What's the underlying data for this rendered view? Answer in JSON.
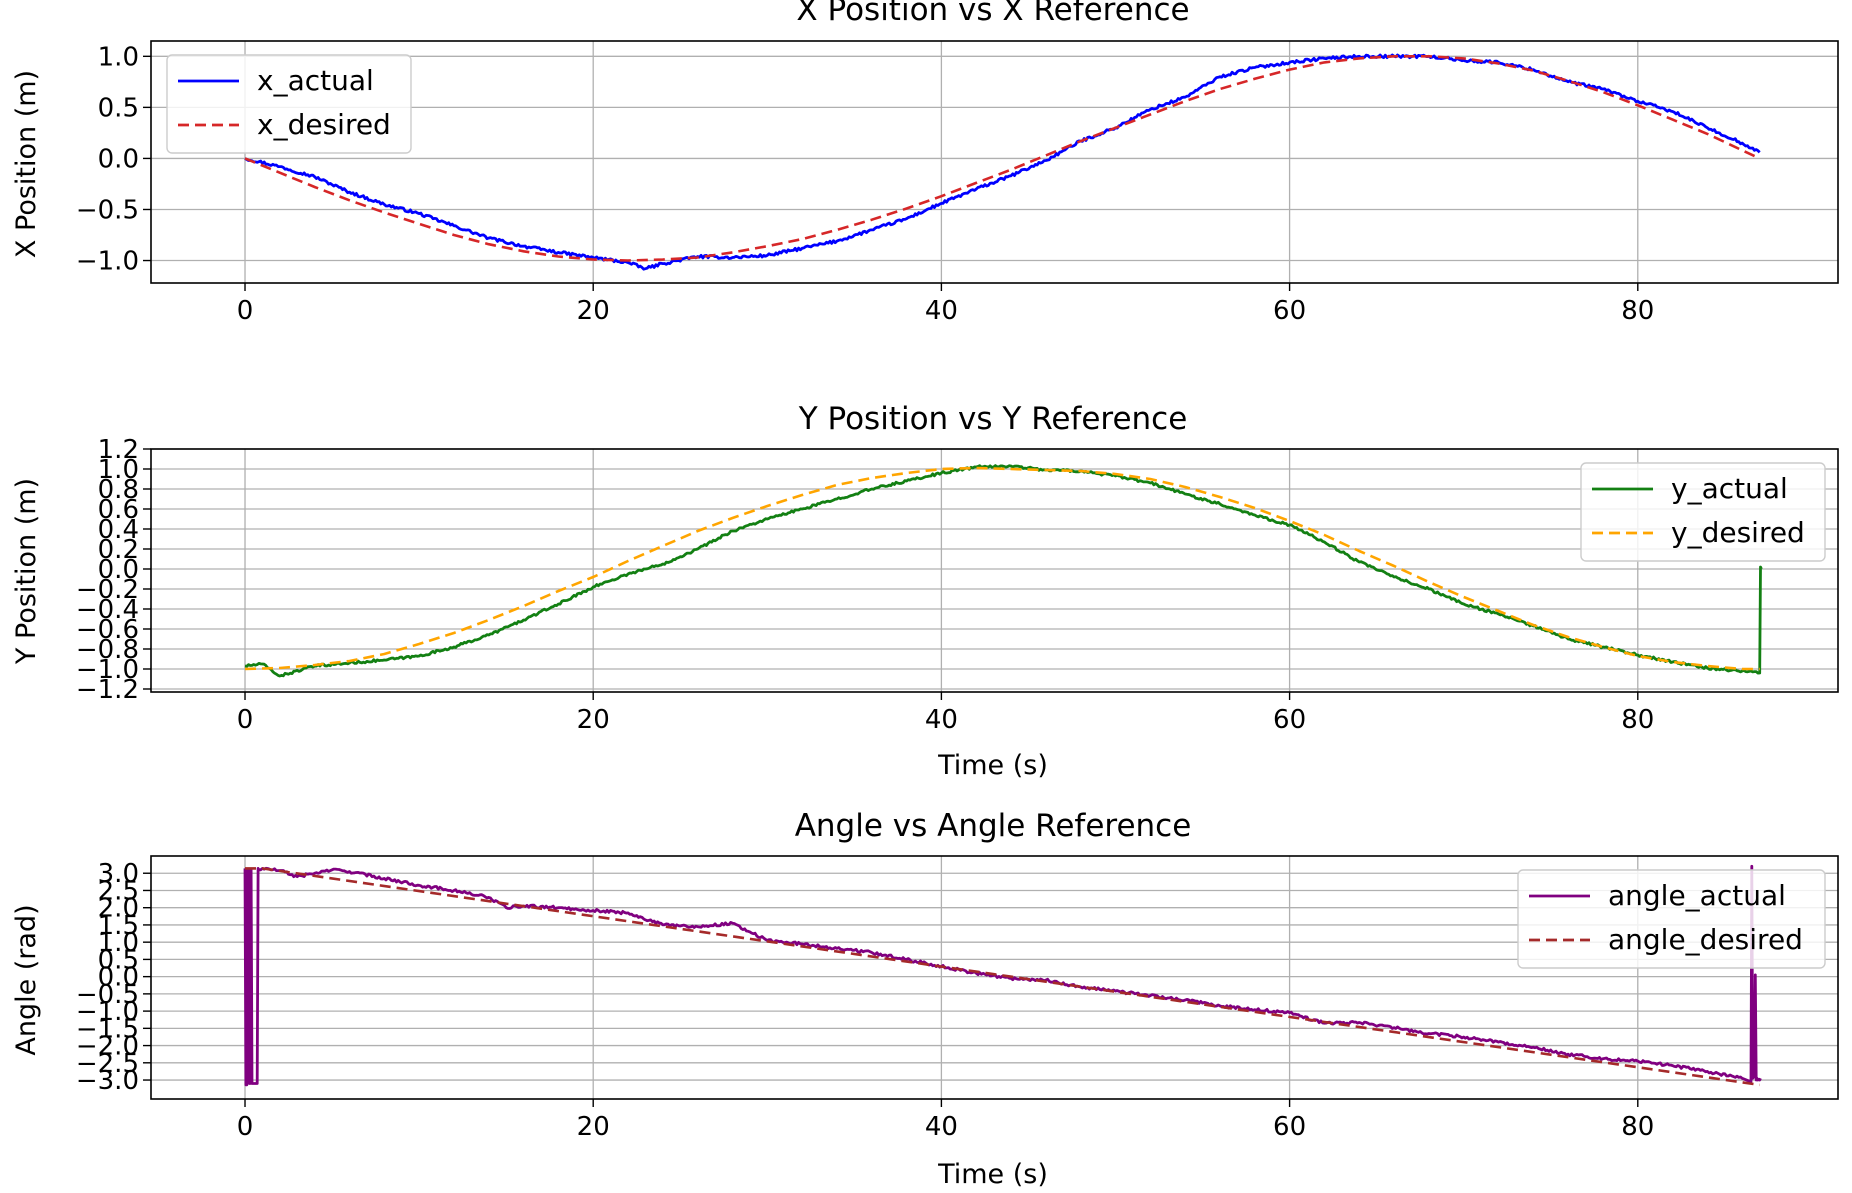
{
  "chart_data": [
    {
      "type": "line",
      "title": "X Position vs X Reference",
      "xlabel": "",
      "ylabel": "X Position (m)",
      "xlim": [
        -5.4,
        91.5
      ],
      "ylim": [
        -1.22,
        1.15
      ],
      "xticks": [
        0,
        20,
        40,
        60,
        80
      ],
      "xtick_labels": [
        "0",
        "20",
        "40",
        "60",
        "80"
      ],
      "yticks": [
        -1.0,
        -0.5,
        0.0,
        0.5,
        1.0
      ],
      "ytick_labels": [
        "−1.0",
        "−0.5",
        "0.0",
        "0.5",
        "1.0"
      ],
      "grid": true,
      "legend_position": "upper-left",
      "series": [
        {
          "name": "x_actual",
          "color": "#0000ff",
          "dash": "solid",
          "noise": 0.014,
          "x": [
            0,
            2,
            4,
            6,
            8,
            10,
            12,
            14,
            16,
            18,
            20,
            22,
            23,
            24,
            26,
            28,
            30,
            32,
            34,
            36,
            38,
            40,
            42,
            44,
            46,
            48,
            50,
            52,
            54,
            56,
            58,
            60,
            62,
            64,
            66,
            68,
            70,
            72,
            74,
            76,
            78,
            80,
            82,
            84,
            86,
            87
          ],
          "y": [
            0.0,
            -0.08,
            -0.18,
            -0.33,
            -0.45,
            -0.54,
            -0.66,
            -0.78,
            -0.86,
            -0.92,
            -0.97,
            -1.02,
            -1.08,
            -1.03,
            -0.96,
            -0.97,
            -0.95,
            -0.88,
            -0.81,
            -0.7,
            -0.59,
            -0.44,
            -0.3,
            -0.17,
            -0.02,
            0.17,
            0.3,
            0.48,
            0.6,
            0.8,
            0.89,
            0.94,
            0.98,
            1.0,
            1.0,
            1.0,
            0.96,
            0.94,
            0.87,
            0.75,
            0.68,
            0.56,
            0.46,
            0.3,
            0.15,
            0.06
          ]
        },
        {
          "name": "x_desired",
          "color": "#d62728",
          "dash": "dashed",
          "noise": 0,
          "x": [
            0,
            2,
            4,
            6,
            8,
            10,
            12,
            14,
            16,
            18,
            20,
            22,
            24,
            26,
            28,
            30,
            32,
            34,
            36,
            38,
            40,
            42,
            44,
            46,
            48,
            50,
            52,
            54,
            56,
            58,
            60,
            62,
            64,
            66,
            68,
            70,
            72,
            74,
            76,
            78,
            80,
            82,
            84,
            86,
            87
          ],
          "y": [
            0.0,
            -0.14,
            -0.28,
            -0.41,
            -0.53,
            -0.64,
            -0.75,
            -0.84,
            -0.91,
            -0.96,
            -0.99,
            -1.0,
            -0.99,
            -0.97,
            -0.92,
            -0.86,
            -0.79,
            -0.7,
            -0.6,
            -0.49,
            -0.37,
            -0.24,
            -0.11,
            0.03,
            0.17,
            0.3,
            0.43,
            0.56,
            0.68,
            0.78,
            0.87,
            0.94,
            0.98,
            1.0,
            1.0,
            0.98,
            0.93,
            0.86,
            0.76,
            0.65,
            0.52,
            0.38,
            0.24,
            0.08,
            0.0
          ]
        }
      ]
    },
    {
      "type": "line",
      "title": "Y Position vs Y Reference",
      "xlabel": "Time (s)",
      "ylabel": "Y Position (m)",
      "xlim": [
        -5.4,
        91.5
      ],
      "ylim": [
        -1.23,
        1.2
      ],
      "xticks": [
        0,
        20,
        40,
        60,
        80
      ],
      "xtick_labels": [
        "0",
        "20",
        "40",
        "60",
        "80"
      ],
      "yticks": [
        -1.2,
        -1.0,
        -0.8,
        -0.6,
        -0.4,
        -0.2,
        0.0,
        0.2,
        0.4,
        0.6,
        0.8,
        1.0,
        1.2
      ],
      "ytick_labels": [
        "−1.2",
        "−1.0",
        "−0.8",
        "−0.6",
        "−0.4",
        "−0.2",
        "0.0",
        "0.2",
        "0.4",
        "0.6",
        "0.8",
        "1.0",
        "1.2"
      ],
      "grid": true,
      "legend_position": "upper-right",
      "series": [
        {
          "name": "y_actual",
          "color": "#138013",
          "dash": "solid",
          "noise": 0.012,
          "x": [
            0,
            1,
            2,
            4,
            6,
            8,
            10,
            12,
            14,
            16,
            18,
            20,
            22,
            24,
            26,
            28,
            30,
            32,
            34,
            36,
            38,
            40,
            42,
            44,
            46,
            48,
            50,
            52,
            54,
            56,
            58,
            60,
            62,
            64,
            66,
            68,
            70,
            72,
            74,
            76,
            78,
            80,
            82,
            84,
            86,
            87,
            87.05,
            87.1
          ],
          "y": [
            -0.97,
            -0.95,
            -1.07,
            -0.97,
            -0.94,
            -0.91,
            -0.87,
            -0.78,
            -0.66,
            -0.51,
            -0.35,
            -0.18,
            -0.05,
            0.05,
            0.2,
            0.38,
            0.5,
            0.6,
            0.7,
            0.8,
            0.88,
            0.96,
            1.02,
            1.03,
            0.99,
            0.98,
            0.93,
            0.86,
            0.75,
            0.65,
            0.54,
            0.44,
            0.27,
            0.07,
            -0.08,
            -0.2,
            -0.35,
            -0.45,
            -0.57,
            -0.7,
            -0.78,
            -0.86,
            -0.93,
            -0.99,
            -1.02,
            -1.04,
            0.02,
            0.0
          ]
        },
        {
          "name": "y_desired",
          "color": "#ffa500",
          "dash": "dashed",
          "noise": 0,
          "x": [
            0,
            2,
            4,
            6,
            8,
            10,
            12,
            14,
            16,
            18,
            20,
            22,
            24,
            26,
            28,
            30,
            32,
            34,
            36,
            38,
            40,
            42,
            44,
            46,
            48,
            50,
            52,
            54,
            56,
            58,
            60,
            62,
            64,
            66,
            68,
            70,
            72,
            74,
            76,
            78,
            80,
            82,
            84,
            86,
            87
          ],
          "y": [
            -1.0,
            -0.99,
            -0.96,
            -0.92,
            -0.85,
            -0.75,
            -0.64,
            -0.51,
            -0.37,
            -0.22,
            -0.08,
            0.08,
            0.23,
            0.38,
            0.51,
            0.63,
            0.74,
            0.84,
            0.91,
            0.96,
            1.0,
            1.01,
            1.0,
            0.99,
            0.98,
            0.95,
            0.9,
            0.82,
            0.72,
            0.61,
            0.48,
            0.34,
            0.18,
            0.03,
            -0.13,
            -0.28,
            -0.42,
            -0.56,
            -0.68,
            -0.78,
            -0.87,
            -0.93,
            -0.97,
            -1.0,
            -1.0
          ]
        }
      ]
    },
    {
      "type": "line",
      "title": "Angle vs Angle Reference",
      "xlabel": "Time (s)",
      "ylabel": "Angle (rad)",
      "xlim": [
        -5.4,
        91.5
      ],
      "ylim": [
        -3.55,
        3.5
      ],
      "xticks": [
        0,
        20,
        40,
        60,
        80
      ],
      "xtick_labels": [
        "0",
        "20",
        "40",
        "60",
        "80"
      ],
      "yticks": [
        -3.0,
        -2.5,
        -2.0,
        -1.5,
        -1.0,
        -0.5,
        0.0,
        0.5,
        1.0,
        1.5,
        2.0,
        2.5,
        3.0
      ],
      "ytick_labels": [
        "−3.0",
        "−2.5",
        "−2.0",
        "−1.5",
        "−1.0",
        "−0.5",
        "0.0",
        "0.5",
        "1.0",
        "1.5",
        "2.0",
        "2.5",
        "3.0"
      ],
      "grid": true,
      "legend_position": "upper-right",
      "series": [
        {
          "name": "angle_actual",
          "color": "#800080",
          "dash": "solid",
          "noise": 0.04,
          "x": [
            0,
            0.05,
            0.1,
            0.15,
            0.2,
            0.25,
            0.3,
            0.35,
            0.4,
            0.7,
            0.75,
            0.8,
            0.9,
            1,
            2,
            3,
            4,
            5,
            6,
            8,
            10,
            12,
            14,
            15,
            16,
            18,
            20,
            22,
            24,
            26,
            28,
            30,
            32,
            34,
            36,
            38,
            40,
            42,
            44,
            46,
            48,
            50,
            52,
            54,
            56,
            58,
            60,
            62,
            64,
            66,
            68,
            70,
            72,
            74,
            76,
            78,
            80,
            82,
            84,
            86,
            86.5,
            86.55,
            86.6,
            86.7,
            86.75,
            86.8,
            86.85,
            86.9,
            86.95,
            87,
            87.05
          ],
          "y": [
            3.14,
            -3.14,
            -3.14,
            3.1,
            3.1,
            -3.1,
            -3.1,
            3.1,
            -3.1,
            -3.1,
            3.14,
            3.1,
            3.1,
            3.14,
            3.08,
            2.9,
            3.0,
            3.1,
            3.05,
            2.85,
            2.65,
            2.5,
            2.3,
            2.0,
            2.05,
            2.0,
            1.92,
            1.85,
            1.5,
            1.45,
            1.55,
            1.05,
            0.95,
            0.82,
            0.7,
            0.5,
            0.3,
            0.1,
            -0.05,
            -0.1,
            -0.3,
            -0.42,
            -0.55,
            -0.68,
            -0.85,
            -0.96,
            -1.05,
            -1.35,
            -1.33,
            -1.48,
            -1.65,
            -1.75,
            -1.9,
            -2.05,
            -2.25,
            -2.38,
            -2.45,
            -2.58,
            -2.75,
            -2.95,
            -3.05,
            3.2,
            -2.95,
            -2.9,
            0.05,
            -3.0,
            -2.95,
            -3.0,
            -2.98,
            -3.0,
            -2.95
          ]
        },
        {
          "name": "angle_desired",
          "color": "#a52a2a",
          "dash": "dashed",
          "noise": 0,
          "x": [
            0,
            1,
            87
          ],
          "y": [
            3.14,
            3.14,
            -3.14
          ]
        }
      ]
    }
  ]
}
